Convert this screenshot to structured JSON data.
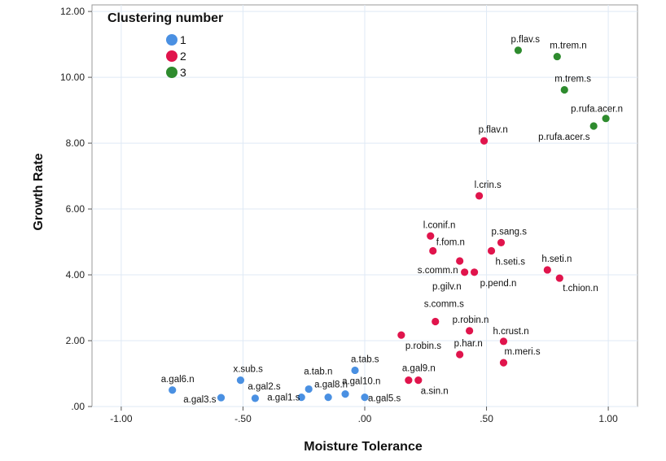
{
  "chart_data": {
    "type": "scatter",
    "xlabel": "Moisture Tolerance",
    "ylabel": "Growth Rate",
    "xlim": [
      -1.12,
      1.12
    ],
    "ylim": [
      0,
      12.2
    ],
    "grid": true,
    "legend": {
      "title": "Clustering number",
      "position": "top-left"
    },
    "x_ticks": [
      {
        "value": -1.0,
        "label": "-1.00"
      },
      {
        "value": -0.5,
        "label": "-.50"
      },
      {
        "value": 0.0,
        "label": ".00"
      },
      {
        "value": 0.5,
        "label": ".50"
      },
      {
        "value": 1.0,
        "label": "1.00"
      }
    ],
    "y_ticks": [
      {
        "value": 0,
        "label": ".00"
      },
      {
        "value": 2,
        "label": "2.00"
      },
      {
        "value": 4,
        "label": "4.00"
      },
      {
        "value": 6,
        "label": "6.00"
      },
      {
        "value": 8,
        "label": "8.00"
      },
      {
        "value": 10,
        "label": "10.00"
      },
      {
        "value": 12,
        "label": "12.00"
      }
    ],
    "series": [
      {
        "name": "1",
        "color": "#4a90e2",
        "points": [
          {
            "label": "a.gal6.n",
            "x": -0.79,
            "y": 0.5
          },
          {
            "label": "a.gal3.s",
            "x": -0.59,
            "y": 0.27
          },
          {
            "label": "x.sub.s",
            "x": -0.51,
            "y": 0.8
          },
          {
            "label": "a.gal2.s",
            "x": -0.45,
            "y": 0.25
          },
          {
            "label": "a.gal1.s",
            "x": -0.26,
            "y": 0.28
          },
          {
            "label": "a.tab.n",
            "x": -0.23,
            "y": 0.53
          },
          {
            "label": "a.gal8.n",
            "x": -0.15,
            "y": 0.28
          },
          {
            "label": "a.gal10.n",
            "x": -0.08,
            "y": 0.38
          },
          {
            "label": "a.tab.s",
            "x": -0.04,
            "y": 1.1
          },
          {
            "label": "a.gal5.s",
            "x": 0.0,
            "y": 0.28
          }
        ]
      },
      {
        "name": "2",
        "color": "#e0144c",
        "points": [
          {
            "label": "p.flav.n",
            "x": 0.49,
            "y": 8.07
          },
          {
            "label": "l.crin.s",
            "x": 0.47,
            "y": 6.4
          },
          {
            "label": "l.conif.n",
            "x": 0.27,
            "y": 5.18
          },
          {
            "label": "p.sang.s",
            "x": 0.56,
            "y": 4.98
          },
          {
            "label": "f.fom.n",
            "x": 0.28,
            "y": 4.73
          },
          {
            "label": "h.seti.s",
            "x": 0.52,
            "y": 4.73
          },
          {
            "label": "s.comm.n",
            "x": 0.39,
            "y": 4.42
          },
          {
            "label": "p.gilv.n",
            "x": 0.41,
            "y": 4.08
          },
          {
            "label": "p.pend.n",
            "x": 0.45,
            "y": 4.08
          },
          {
            "label": "h.seti.n",
            "x": 0.75,
            "y": 4.15
          },
          {
            "label": "t.chion.n",
            "x": 0.8,
            "y": 3.9
          },
          {
            "label": "s.comm.s",
            "x": 0.29,
            "y": 2.58
          },
          {
            "label": "p.robin.n",
            "x": 0.43,
            "y": 2.3
          },
          {
            "label": "p.robin.s",
            "x": 0.15,
            "y": 2.17
          },
          {
            "label": "h.crust.n",
            "x": 0.57,
            "y": 1.98
          },
          {
            "label": "p.har.n",
            "x": 0.39,
            "y": 1.58
          },
          {
            "label": "m.meri.s",
            "x": 0.57,
            "y": 1.33
          },
          {
            "label": "a.gal9.n",
            "x": 0.18,
            "y": 0.8
          },
          {
            "label": "a.sin.n",
            "x": 0.22,
            "y": 0.8
          }
        ]
      },
      {
        "name": "3",
        "color": "#2e8b2e",
        "points": [
          {
            "label": "p.flav.s",
            "x": 0.63,
            "y": 10.82
          },
          {
            "label": "m.trem.n",
            "x": 0.79,
            "y": 10.63
          },
          {
            "label": "m.trem.s",
            "x": 0.82,
            "y": 9.62
          },
          {
            "label": "p.rufa.acer.n",
            "x": 0.99,
            "y": 8.75
          },
          {
            "label": "p.rufa.acer.s",
            "x": 0.94,
            "y": 8.52
          }
        ]
      }
    ]
  }
}
